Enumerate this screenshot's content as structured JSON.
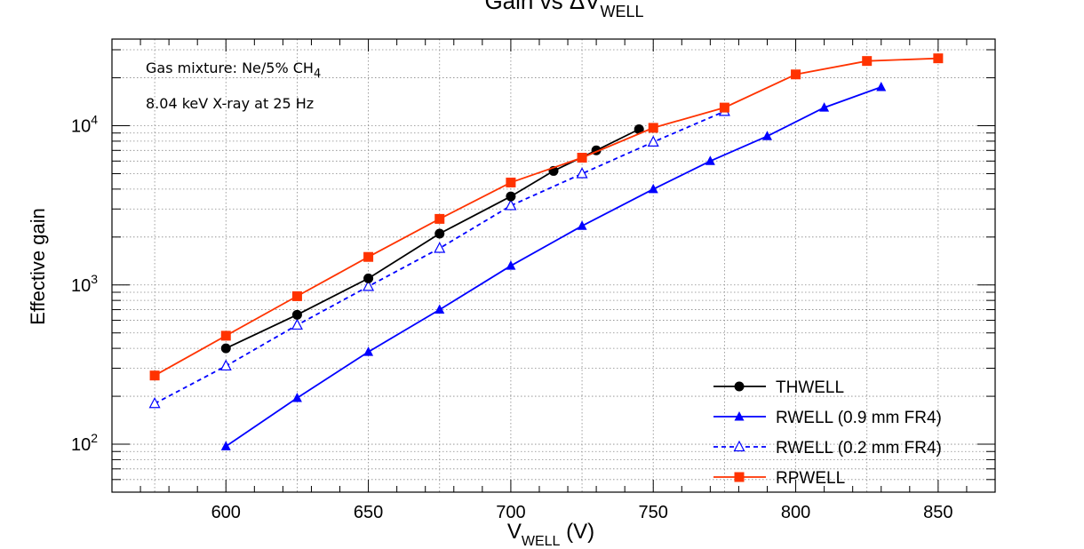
{
  "chart_data": {
    "type": "line",
    "title": {
      "main": "Gain vs ",
      "delta": "ΔV",
      "sub": "WELL"
    },
    "xlabel": {
      "main": "V",
      "sub": "WELL",
      "unit": " (V)"
    },
    "ylabel": "Effective gain",
    "xlim": [
      560,
      870
    ],
    "ylim": [
      50,
      35000
    ],
    "yscale": "log",
    "x_ticks": [
      600,
      650,
      700,
      750,
      800,
      850
    ],
    "x_tick_labels": [
      "600",
      "650",
      "700",
      "750",
      "800",
      "850"
    ],
    "y_ticks": [
      {
        "base": "10",
        "exp": "2",
        "value": 100
      },
      {
        "base": "10",
        "exp": "3",
        "value": 1000
      },
      {
        "base": "10",
        "exp": "4",
        "value": 10000
      }
    ],
    "grid": true,
    "annotations": [
      {
        "text": "Gas mixture: Ne/5% CH",
        "sub": "4"
      },
      {
        "text": "8.04 keV X-ray at 25 Hz",
        "sub": ""
      }
    ],
    "legend_position": "bottom-right",
    "series": [
      {
        "name": "THWELL",
        "color": "#000000",
        "marker": "circle",
        "line": "solid",
        "x": [
          600,
          625,
          650,
          675,
          700,
          715,
          730,
          745
        ],
        "y": [
          400,
          650,
          1100,
          2100,
          3600,
          5200,
          7000,
          9500
        ]
      },
      {
        "name": "RWELL (0.9 mm FR4)",
        "color": "#0000ff",
        "marker": "triangle",
        "line": "solid",
        "x": [
          600,
          625,
          650,
          675,
          700,
          725,
          750,
          770,
          790,
          810,
          830
        ],
        "y": [
          97,
          195,
          380,
          700,
          1320,
          2350,
          4000,
          6000,
          8600,
          13000,
          17500
        ]
      },
      {
        "name": "RWELL (0.2 mm FR4)",
        "color": "#0000ff",
        "marker": "triangle-open",
        "line": "dashed",
        "x": [
          575,
          600,
          625,
          650,
          675,
          700,
          725,
          750,
          775
        ],
        "y": [
          180,
          310,
          560,
          980,
          1700,
          3150,
          5000,
          7900,
          12300
        ]
      },
      {
        "name": "RPWELL",
        "color": "#ff3300",
        "marker": "square",
        "line": "solid",
        "x": [
          575,
          600,
          625,
          650,
          675,
          700,
          725,
          750,
          775,
          800,
          825,
          850
        ],
        "y": [
          270,
          480,
          850,
          1500,
          2600,
          4400,
          6300,
          9700,
          13000,
          21000,
          25500,
          26500
        ]
      }
    ]
  }
}
